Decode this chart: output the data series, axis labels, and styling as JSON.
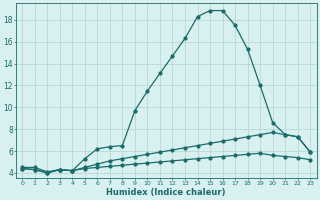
{
  "xlabel": "Humidex (Indice chaleur)",
  "bg_color": "#d8f0f0",
  "grid_color": "#b8d8d8",
  "line_color": "#1a6b6b",
  "xlim": [
    -0.5,
    23.5
  ],
  "ylim": [
    3.5,
    19.5
  ],
  "xticks": [
    0,
    1,
    2,
    3,
    4,
    5,
    6,
    7,
    8,
    9,
    10,
    11,
    12,
    13,
    14,
    15,
    16,
    17,
    18,
    19,
    20,
    21,
    22,
    23
  ],
  "yticks": [
    4,
    6,
    8,
    10,
    12,
    14,
    16,
    18
  ],
  "curve1_x": [
    0,
    1,
    2,
    3,
    4,
    5,
    6,
    7,
    8,
    9,
    10,
    11,
    12,
    13,
    14,
    15,
    16,
    17,
    18,
    19,
    20,
    21,
    22,
    23
  ],
  "curve1_y": [
    4.5,
    4.5,
    4.1,
    4.3,
    4.2,
    5.3,
    6.2,
    6.4,
    6.5,
    9.7,
    11.5,
    13.1,
    14.7,
    16.3,
    18.3,
    18.85,
    18.85,
    17.5,
    15.3,
    12.0,
    8.6,
    7.5,
    7.3,
    5.9
  ],
  "curve2_x": [
    0,
    1,
    2,
    3,
    4,
    5,
    6,
    7,
    8,
    9,
    10,
    11,
    12,
    13,
    14,
    15,
    16,
    17,
    18,
    19,
    20,
    21,
    22,
    23
  ],
  "curve2_y": [
    4.4,
    4.3,
    4.0,
    4.3,
    4.2,
    4.5,
    4.8,
    5.1,
    5.3,
    5.5,
    5.7,
    5.9,
    6.1,
    6.3,
    6.5,
    6.7,
    6.9,
    7.1,
    7.3,
    7.5,
    7.7,
    7.5,
    7.3,
    5.9
  ],
  "curve3_x": [
    0,
    1,
    2,
    3,
    4,
    5,
    6,
    7,
    8,
    9,
    10,
    11,
    12,
    13,
    14,
    15,
    16,
    17,
    18,
    19,
    20,
    21,
    22,
    23
  ],
  "curve3_y": [
    4.4,
    4.3,
    4.0,
    4.3,
    4.2,
    4.4,
    4.5,
    4.6,
    4.7,
    4.8,
    4.9,
    5.0,
    5.1,
    5.2,
    5.3,
    5.4,
    5.5,
    5.6,
    5.7,
    5.8,
    5.6,
    5.5,
    5.4,
    5.2
  ]
}
